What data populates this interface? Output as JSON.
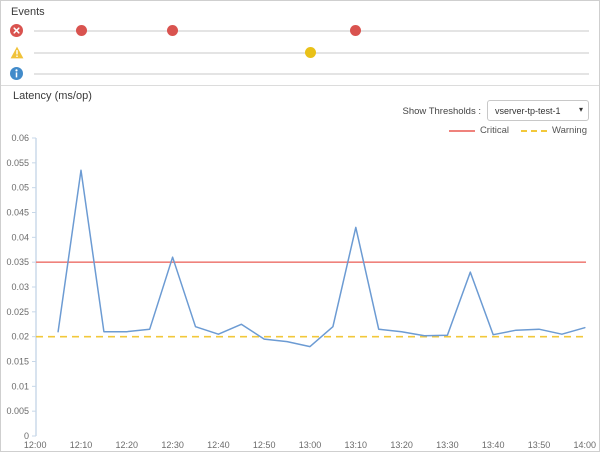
{
  "panels": {
    "events": {
      "title": "Events",
      "rows": [
        {
          "severity": "error",
          "icon": "error-circle-icon",
          "dot_color": "#d9534f",
          "events": [
            "12:10",
            "12:30",
            "13:10"
          ]
        },
        {
          "severity": "warning",
          "icon": "warning-triangle-icon",
          "dot_color": "#e9c118",
          "events": [
            "13:00"
          ]
        },
        {
          "severity": "info",
          "icon": "info-circle-icon",
          "dot_color": "#428bca",
          "events": []
        }
      ]
    },
    "latency": {
      "title": "Latency (ms/op)",
      "threshold_label": "Show Thresholds :",
      "threshold_select": {
        "value": "vserver-tp-test-1",
        "options": [
          "vserver-tp-test-1"
        ],
        "icon": "chevron-down-icon"
      },
      "legend": [
        {
          "label": "Critical",
          "color": "#ef827c",
          "style": "solid"
        },
        {
          "label": "Warning",
          "color": "#f2c83b",
          "style": "dashed"
        }
      ]
    }
  },
  "chart_data": {
    "type": "line",
    "title": "Latency (ms/op)",
    "ylabel": "Latency (ms/op)",
    "xlabel": "",
    "grid": false,
    "legend_position": "top-right",
    "series_color": "#6c9bd3",
    "axis_color": "#c7d7e8",
    "x": [
      "12:05",
      "12:10",
      "12:15",
      "12:20",
      "12:25",
      "12:30",
      "12:35",
      "12:40",
      "12:45",
      "12:50",
      "12:55",
      "13:00",
      "13:05",
      "13:10",
      "13:15",
      "13:20",
      "13:25",
      "13:30",
      "13:35",
      "13:40",
      "13:45",
      "13:50",
      "13:55",
      "14:00"
    ],
    "values": [
      0.021,
      0.0535,
      0.021,
      0.021,
      0.0215,
      0.036,
      0.022,
      0.0205,
      0.0225,
      0.0195,
      0.019,
      0.018,
      0.022,
      0.042,
      0.0215,
      0.021,
      0.0202,
      0.0203,
      0.033,
      0.0204,
      0.0213,
      0.0215,
      0.0205,
      0.0218
    ],
    "xlim": [
      "12:00",
      "14:00"
    ],
    "ylim": [
      0,
      0.06
    ],
    "x_ticks": [
      "12:00",
      "12:10",
      "12:20",
      "12:30",
      "12:40",
      "12:50",
      "13:00",
      "13:10",
      "13:20",
      "13:30",
      "13:40",
      "13:50",
      "14:00"
    ],
    "y_ticks": [
      "0.06",
      "0.055",
      "0.05",
      "0.045",
      "0.04",
      "0.035",
      "0.03",
      "0.025",
      "0.02",
      "0.015",
      "0.01",
      "0.005",
      "0"
    ],
    "thresholds": [
      {
        "name": "Critical",
        "value": 0.035,
        "color": "#ef827c",
        "style": "solid"
      },
      {
        "name": "Warning",
        "value": 0.02,
        "color": "#f2c83b",
        "style": "dashed"
      }
    ]
  }
}
